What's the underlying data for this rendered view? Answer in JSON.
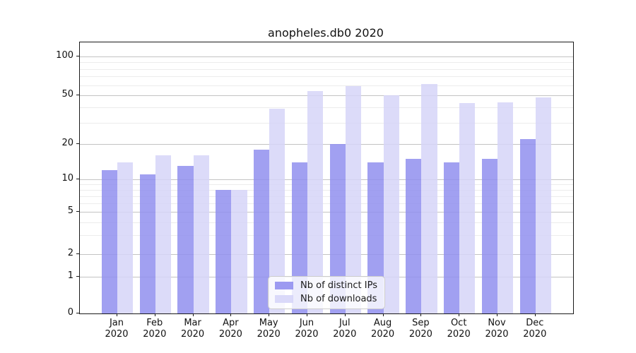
{
  "title": "anopheles.db0 2020",
  "chart_data": {
    "type": "bar",
    "title": "anopheles.db0 2020",
    "categories": [
      "Jan 2020",
      "Feb 2020",
      "Mar 2020",
      "Apr 2020",
      "May 2020",
      "Jun 2020",
      "Jul 2020",
      "Aug 2020",
      "Sep 2020",
      "Oct 2020",
      "Nov 2020",
      "Dec 2020"
    ],
    "series": [
      {
        "name": "Nb of distinct IPs",
        "color": "#918fef",
        "values": [
          12,
          11,
          13,
          8,
          18,
          14,
          20,
          14,
          15,
          14,
          15,
          22
        ]
      },
      {
        "name": "Nb of downloads",
        "color": "#d6d5f8",
        "values": [
          14,
          16,
          16,
          8,
          39,
          54,
          59,
          50,
          61,
          43,
          44,
          48
        ]
      }
    ],
    "y_axis": {
      "ticks": [
        0,
        1,
        2,
        5,
        10,
        20,
        50,
        100
      ],
      "minor_ticks": [
        3,
        4,
        6,
        7,
        8,
        9,
        30,
        40,
        60,
        70,
        80,
        90
      ],
      "scale": "log (with 0 baseline)"
    },
    "x_axis": {
      "tick_labels_two_lines": true
    },
    "legend": {
      "position": "lower center",
      "entries": [
        "Nb of distinct IPs",
        "Nb of downloads"
      ]
    },
    "grid": "horizontal, major and minor",
    "colors": {
      "bar_distinct_ips": "#918fef",
      "bar_downloads": "#d6d5f8",
      "major_grid": "#c3c3c3",
      "minor_grid": "#ececec",
      "axis": "#1a1a1a",
      "background": "#ffffff"
    }
  }
}
